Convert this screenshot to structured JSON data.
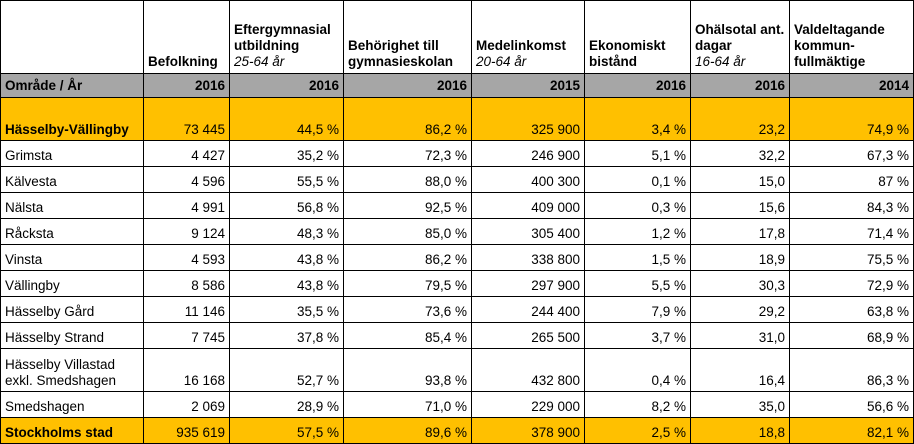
{
  "table": {
    "headers": [
      {
        "label": "",
        "sub": ""
      },
      {
        "label": "Befolkning",
        "sub": ""
      },
      {
        "label": "Eftergymnasial utbildning",
        "sub": "25-64 år"
      },
      {
        "label": "Behörighet till gymnasieskolan",
        "sub": ""
      },
      {
        "label": "Medelinkomst",
        "sub": "20-64 år"
      },
      {
        "label": "Ekonomiskt bistånd",
        "sub": ""
      },
      {
        "label": "Ohälsotal ant. dagar",
        "sub": "16-64 år"
      },
      {
        "label": "Valdeltagande kommun-fullmäktige",
        "sub": ""
      }
    ],
    "year_row": [
      "Område / År",
      "2016",
      "2016",
      "2016",
      "2015",
      "2016",
      "2016",
      "2014"
    ],
    "rows": [
      {
        "cells": [
          "Hässelby-Vällingby",
          "73 445",
          "44,5 %",
          "86,2 %",
          "325 900",
          "3,4 %",
          "23,2",
          "74,9 %"
        ]
      },
      {
        "cells": [
          "Grimsta",
          "4 427",
          "35,2 %",
          "72,3 %",
          "246 900",
          "5,1 %",
          "32,2",
          "67,3 %"
        ]
      },
      {
        "cells": [
          "Kälvesta",
          "4 596",
          "55,5 %",
          "88,0 %",
          "400 300",
          "0,1 %",
          "15,0",
          "87 %"
        ]
      },
      {
        "cells": [
          "Nälsta",
          "4 991",
          "56,8 %",
          "92,5 %",
          "409 000",
          "0,3 %",
          "15,6",
          "84,3 %"
        ]
      },
      {
        "cells": [
          "Råcksta",
          "9 124",
          "48,3 %",
          "85,0 %",
          "305 400",
          "1,2 %",
          "17,8",
          "71,4 %"
        ]
      },
      {
        "cells": [
          "Vinsta",
          "4 593",
          "43,8 %",
          "86,2 %",
          "338 800",
          "1,5 %",
          "18,9",
          "75,5 %"
        ]
      },
      {
        "cells": [
          "Vällingby",
          "8 586",
          "43,8 %",
          "79,5 %",
          "297 900",
          "5,5 %",
          "30,3",
          "72,9 %"
        ]
      },
      {
        "cells": [
          "Hässelby Gård",
          "11 146",
          "35,5 %",
          "73,6 %",
          "244 400",
          "7,9 %",
          "29,2",
          "63,8 %"
        ]
      },
      {
        "cells": [
          "Hässelby Strand",
          "7 745",
          "37,8 %",
          "85,4 %",
          "265 500",
          "3,7 %",
          "31,0",
          "68,9 %"
        ]
      },
      {
        "cells": [
          "Hässelby Villastad exkl. Smedshagen",
          "16 168",
          "52,7 %",
          "93,8 %",
          "432 800",
          "0,4 %",
          "16,4",
          "86,3 %"
        ]
      },
      {
        "cells": [
          "Smedshagen",
          "2 069",
          "28,9 %",
          "71,0 %",
          "229 000",
          "8,2 %",
          "35,0",
          "56,6 %"
        ]
      },
      {
        "cells": [
          "Stockholms stad",
          "935 619",
          "57,5 %",
          "89,6 %",
          "378 900",
          "2,5 %",
          "18,8",
          "82,1 %"
        ]
      }
    ],
    "colors": {
      "highlight": "#ffc000",
      "year_row": "#a6a6a6"
    }
  }
}
